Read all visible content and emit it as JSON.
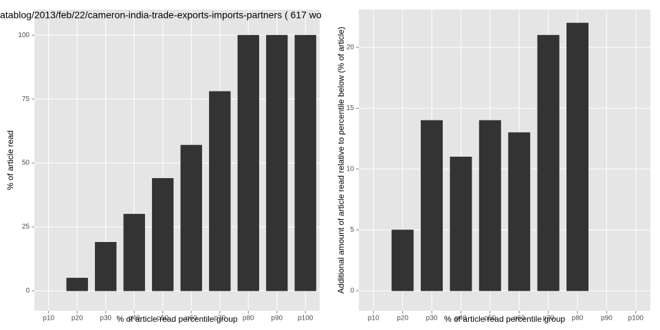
{
  "chart_data": [
    {
      "type": "bar",
      "title": "atablog/2013/feb/22/cameron-india-trade-exports-imports-partners ( 617 wo",
      "xlabel": "% of article read percentile group",
      "ylabel": "% of article read",
      "categories": [
        "p10",
        "p20",
        "p30",
        "p40",
        "p50",
        "p60",
        "p70",
        "p80",
        "p90",
        "p100"
      ],
      "values": [
        0,
        5,
        19,
        30,
        44,
        57,
        78,
        100,
        100,
        100
      ],
      "color": "#333333",
      "ylim": [
        -7.8,
        110
      ],
      "yticks": [
        0,
        25,
        50,
        75,
        100
      ],
      "grid": true
    },
    {
      "type": "bar",
      "xlabel": "% of article read percentile group",
      "ylabel": "Additional amount of article read relative to percentile below (% of article)",
      "categories": [
        "p10",
        "p20",
        "p30",
        "p40",
        "p50",
        "p60",
        "p70",
        "p80",
        "p90",
        "p100"
      ],
      "values": [
        0,
        5,
        14,
        11,
        14,
        13,
        21,
        22,
        0,
        0
      ],
      "color": "#333333",
      "ylim": [
        -1.64,
        23.1
      ],
      "yticks": [
        0,
        5,
        10,
        15,
        20
      ],
      "grid": true
    }
  ]
}
